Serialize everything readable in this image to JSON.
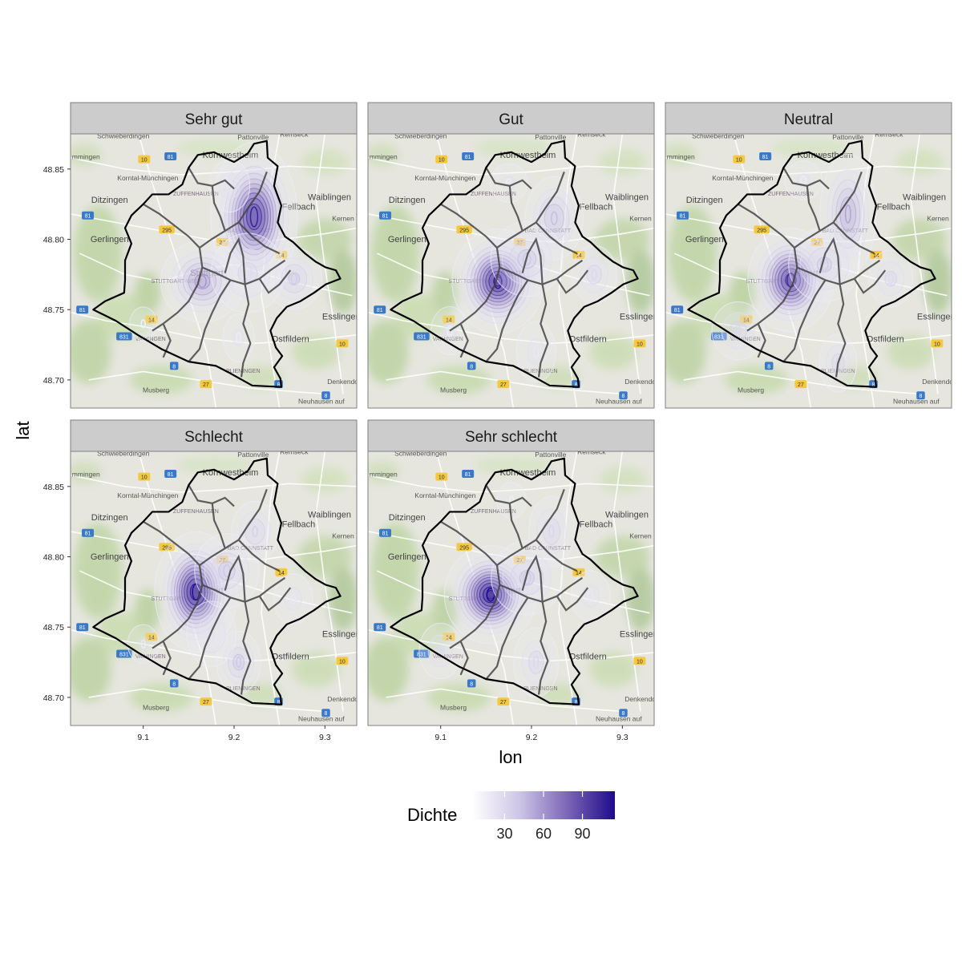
{
  "chart_data": {
    "type": "map-density-facets",
    "xlabel": "lon",
    "ylabel": "lat",
    "xlim": [
      9.02,
      9.335
    ],
    "ylim": [
      48.68,
      48.875
    ],
    "x_ticks": [
      {
        "value": 9.1,
        "label": "9.1"
      },
      {
        "value": 9.2,
        "label": "9.2"
      },
      {
        "value": 9.3,
        "label": "9.3"
      }
    ],
    "y_ticks": [
      {
        "value": 48.7,
        "label": "48.70"
      },
      {
        "value": 48.75,
        "label": "48.75"
      },
      {
        "value": 48.8,
        "label": "48.80"
      },
      {
        "value": 48.85,
        "label": "48.85"
      }
    ],
    "legend": {
      "title": "Dichte",
      "position": "bottom",
      "min": 5,
      "max": 115,
      "ticks": [
        {
          "value": 30,
          "label": "30"
        },
        {
          "value": 60,
          "label": "60"
        },
        {
          "value": 90,
          "label": "90"
        }
      ],
      "colors": [
        "#ffffff",
        "#bcb4dc",
        "#6a51a3",
        "#1e0a8c"
      ]
    },
    "map_labels": [
      {
        "text": "Schwieberdingen",
        "lon": 9.078,
        "lat": 48.872,
        "cls": "map-label"
      },
      {
        "text": "Pattonville",
        "lon": 9.221,
        "lat": 48.871,
        "cls": "map-label"
      },
      {
        "text": "Remseck",
        "lon": 9.266,
        "lat": 48.873,
        "cls": "map-label"
      },
      {
        "text": "mmingen",
        "lon": 9.037,
        "lat": 48.857,
        "cls": "map-label"
      },
      {
        "text": "Kornwestheim",
        "lon": 9.196,
        "lat": 48.858,
        "cls": "map-label-big"
      },
      {
        "text": "Korntal-Münchingen",
        "lon": 9.105,
        "lat": 48.842,
        "cls": "map-label"
      },
      {
        "text": "ZUFFENHAUSEN",
        "lon": 9.158,
        "lat": 48.831,
        "cls": "map-label-small"
      },
      {
        "text": "Ditzingen",
        "lon": 9.063,
        "lat": 48.826,
        "cls": "map-label-big"
      },
      {
        "text": "Waiblingen",
        "lon": 9.305,
        "lat": 48.828,
        "cls": "map-label-big"
      },
      {
        "text": "Fellbach",
        "lon": 9.271,
        "lat": 48.821,
        "cls": "map-label-big"
      },
      {
        "text": "Kernen",
        "lon": 9.32,
        "lat": 48.813,
        "cls": "map-label"
      },
      {
        "text": "BAD CANNSTATT",
        "lon": 9.218,
        "lat": 48.805,
        "cls": "map-label-small"
      },
      {
        "text": "Gerlingen",
        "lon": 9.063,
        "lat": 48.798,
        "cls": "map-label-big"
      },
      {
        "text": "Stuttgart",
        "lon": 9.17,
        "lat": 48.774,
        "cls": "map-label-big"
      },
      {
        "text": "STUTTGART-WEST",
        "lon": 9.137,
        "lat": 48.769,
        "cls": "map-label-small"
      },
      {
        "text": "Esslingen",
        "lon": 9.318,
        "lat": 48.743,
        "cls": "map-label-big"
      },
      {
        "text": "VAIHINGEN",
        "lon": 9.108,
        "lat": 48.728,
        "cls": "map-label-small"
      },
      {
        "text": "Ostfildern",
        "lon": 9.262,
        "lat": 48.727,
        "cls": "map-label-big"
      },
      {
        "text": "PLIENINGEN",
        "lon": 9.21,
        "lat": 48.705,
        "cls": "map-label-small"
      },
      {
        "text": "Musberg",
        "lon": 9.114,
        "lat": 48.691,
        "cls": "map-label"
      },
      {
        "text": "Denkendorf",
        "lon": 9.322,
        "lat": 48.697,
        "cls": "map-label"
      },
      {
        "text": "Neuhausen auf",
        "lon": 9.296,
        "lat": 48.683,
        "cls": "map-label"
      }
    ],
    "road_badges": [
      {
        "text": "10",
        "lon": 9.101,
        "lat": 48.857,
        "color": "#f5c842"
      },
      {
        "text": "81",
        "lon": 9.13,
        "lat": 48.859,
        "color": "#3a78c8"
      },
      {
        "text": "295",
        "lon": 9.126,
        "lat": 48.807,
        "color": "#f5c842"
      },
      {
        "text": "81",
        "lon": 9.039,
        "lat": 48.817,
        "color": "#3a78c8"
      },
      {
        "text": "14",
        "lon": 9.252,
        "lat": 48.789,
        "color": "#f5c842"
      },
      {
        "text": "27",
        "lon": 9.187,
        "lat": 48.798,
        "color": "#f5c842"
      },
      {
        "text": "81",
        "lon": 9.033,
        "lat": 48.75,
        "color": "#3a78c8"
      },
      {
        "text": "831",
        "lon": 9.079,
        "lat": 48.731,
        "color": "#3a78c8"
      },
      {
        "text": "14",
        "lon": 9.109,
        "lat": 48.743,
        "color": "#f5c842"
      },
      {
        "text": "10",
        "lon": 9.319,
        "lat": 48.726,
        "color": "#f5c842"
      },
      {
        "text": "27",
        "lon": 9.169,
        "lat": 48.697,
        "color": "#f5c842"
      },
      {
        "text": "8",
        "lon": 9.249,
        "lat": 48.697,
        "color": "#3a78c8"
      },
      {
        "text": "8",
        "lon": 9.301,
        "lat": 48.689,
        "color": "#3a78c8"
      },
      {
        "text": "8",
        "lon": 9.134,
        "lat": 48.71,
        "color": "#3a78c8"
      }
    ],
    "boundary": [
      [
        9.19,
        48.858
      ],
      [
        9.2,
        48.855
      ],
      [
        9.215,
        48.861
      ],
      [
        9.222,
        48.868
      ],
      [
        9.236,
        48.87
      ],
      [
        9.237,
        48.858
      ],
      [
        9.248,
        48.852
      ],
      [
        9.244,
        48.838
      ],
      [
        9.252,
        48.824
      ],
      [
        9.248,
        48.812
      ],
      [
        9.256,
        48.802
      ],
      [
        9.265,
        48.798
      ],
      [
        9.278,
        48.79
      ],
      [
        9.29,
        48.784
      ],
      [
        9.301,
        48.78
      ],
      [
        9.312,
        48.778
      ],
      [
        9.317,
        48.772
      ],
      [
        9.301,
        48.768
      ],
      [
        9.288,
        48.762
      ],
      [
        9.273,
        48.756
      ],
      [
        9.258,
        48.752
      ],
      [
        9.247,
        48.744
      ],
      [
        9.24,
        48.735
      ],
      [
        9.246,
        48.723
      ],
      [
        9.253,
        48.717
      ],
      [
        9.244,
        48.709
      ],
      [
        9.251,
        48.701
      ],
      [
        9.252,
        48.695
      ],
      [
        9.22,
        48.696
      ],
      [
        9.195,
        48.705
      ],
      [
        9.18,
        48.71
      ],
      [
        9.15,
        48.713
      ],
      [
        9.12,
        48.722
      ],
      [
        9.094,
        48.732
      ],
      [
        9.07,
        48.742
      ],
      [
        9.045,
        48.75
      ],
      [
        9.058,
        48.756
      ],
      [
        9.079,
        48.762
      ],
      [
        9.08,
        48.771
      ],
      [
        9.08,
        48.785
      ],
      [
        9.087,
        48.797
      ],
      [
        9.08,
        48.808
      ],
      [
        9.087,
        48.817
      ],
      [
        9.1,
        48.825
      ],
      [
        9.11,
        48.832
      ],
      [
        9.128,
        48.832
      ],
      [
        9.143,
        48.839
      ],
      [
        9.15,
        48.851
      ],
      [
        9.16,
        48.86
      ],
      [
        9.178,
        48.862
      ],
      [
        9.19,
        48.858
      ]
    ],
    "district_lines": [
      [
        [
          9.15,
          48.851
        ],
        [
          9.16,
          48.84
        ],
        [
          9.176,
          48.838
        ],
        [
          9.19,
          48.842
        ],
        [
          9.2,
          48.836
        ]
      ],
      [
        [
          9.1,
          48.825
        ],
        [
          9.118,
          48.818
        ],
        [
          9.134,
          48.81
        ],
        [
          9.15,
          48.802
        ],
        [
          9.162,
          48.794
        ]
      ],
      [
        [
          9.162,
          48.794
        ],
        [
          9.175,
          48.8
        ],
        [
          9.19,
          48.806
        ],
        [
          9.205,
          48.812
        ],
        [
          9.215,
          48.822
        ],
        [
          9.228,
          48.834
        ],
        [
          9.236,
          48.848
        ]
      ],
      [
        [
          9.162,
          48.794
        ],
        [
          9.165,
          48.78
        ],
        [
          9.16,
          48.768
        ],
        [
          9.15,
          48.756
        ],
        [
          9.138,
          48.748
        ],
        [
          9.122,
          48.74
        ],
        [
          9.11,
          48.735
        ]
      ],
      [
        [
          9.165,
          48.78
        ],
        [
          9.18,
          48.776
        ],
        [
          9.196,
          48.771
        ],
        [
          9.212,
          48.768
        ],
        [
          9.228,
          48.772
        ],
        [
          9.24,
          48.778
        ],
        [
          9.256,
          48.785
        ]
      ],
      [
        [
          9.212,
          48.768
        ],
        [
          9.216,
          48.754
        ],
        [
          9.21,
          48.74
        ],
        [
          9.218,
          48.726
        ],
        [
          9.21,
          48.712
        ],
        [
          9.208,
          48.702
        ]
      ],
      [
        [
          9.196,
          48.771
        ],
        [
          9.185,
          48.76
        ],
        [
          9.176,
          48.748
        ],
        [
          9.168,
          48.736
        ],
        [
          9.162,
          48.722
        ],
        [
          9.15,
          48.713
        ]
      ],
      [
        [
          9.228,
          48.772
        ],
        [
          9.238,
          48.762
        ],
        [
          9.25,
          48.768
        ],
        [
          9.262,
          48.778
        ]
      ],
      [
        [
          9.205,
          48.812
        ],
        [
          9.22,
          48.802
        ],
        [
          9.234,
          48.795
        ],
        [
          9.25,
          48.79
        ]
      ],
      [
        [
          9.176,
          48.838
        ],
        [
          9.178,
          48.826
        ],
        [
          9.185,
          48.816
        ],
        [
          9.19,
          48.806
        ]
      ],
      [
        [
          9.122,
          48.74
        ],
        [
          9.13,
          48.728
        ],
        [
          9.122,
          48.716
        ]
      ],
      [
        [
          9.19,
          48.776
        ],
        [
          9.196,
          48.79
        ],
        [
          9.205,
          48.8
        ],
        [
          9.21,
          48.788
        ],
        [
          9.212,
          48.768
        ]
      ]
    ],
    "facets": [
      {
        "name": "Sehr gut",
        "hotspots": [
          {
            "lon": 9.222,
            "lat": 48.816,
            "sx": 0.018,
            "sy": 0.02,
            "peak": 105
          },
          {
            "lon": 9.165,
            "lat": 48.77,
            "sx": 0.019,
            "sy": 0.012,
            "peak": 60
          },
          {
            "lon": 9.266,
            "lat": 48.772,
            "sx": 0.014,
            "sy": 0.01,
            "peak": 38
          },
          {
            "lon": 9.215,
            "lat": 48.776,
            "sx": 0.02,
            "sy": 0.014,
            "peak": 28
          },
          {
            "lon": 9.195,
            "lat": 48.838,
            "sx": 0.012,
            "sy": 0.01,
            "peak": 22
          },
          {
            "lon": 9.205,
            "lat": 48.73,
            "sx": 0.01,
            "sy": 0.01,
            "peak": 18
          },
          {
            "lon": 9.1,
            "lat": 48.74,
            "sx": 0.01,
            "sy": 0.008,
            "peak": 14
          }
        ]
      },
      {
        "name": "Gut",
        "hotspots": [
          {
            "lon": 9.163,
            "lat": 48.77,
            "sx": 0.019,
            "sy": 0.014,
            "peak": 108
          },
          {
            "lon": 9.225,
            "lat": 48.815,
            "sx": 0.014,
            "sy": 0.013,
            "peak": 45
          },
          {
            "lon": 9.195,
            "lat": 48.786,
            "sx": 0.018,
            "sy": 0.012,
            "peak": 40
          },
          {
            "lon": 9.269,
            "lat": 48.775,
            "sx": 0.012,
            "sy": 0.01,
            "peak": 30
          },
          {
            "lon": 9.175,
            "lat": 48.84,
            "sx": 0.012,
            "sy": 0.008,
            "peak": 18
          },
          {
            "lon": 9.11,
            "lat": 48.735,
            "sx": 0.012,
            "sy": 0.01,
            "peak": 18
          },
          {
            "lon": 9.205,
            "lat": 48.72,
            "sx": 0.012,
            "sy": 0.012,
            "peak": 20
          }
        ]
      },
      {
        "name": "Neutral",
        "hotspots": [
          {
            "lon": 9.158,
            "lat": 48.771,
            "sx": 0.018,
            "sy": 0.014,
            "peak": 100
          },
          {
            "lon": 9.221,
            "lat": 48.818,
            "sx": 0.013,
            "sy": 0.018,
            "peak": 55
          },
          {
            "lon": 9.195,
            "lat": 48.782,
            "sx": 0.018,
            "sy": 0.012,
            "peak": 38
          },
          {
            "lon": 9.268,
            "lat": 48.772,
            "sx": 0.012,
            "sy": 0.01,
            "peak": 28
          },
          {
            "lon": 9.1,
            "lat": 48.735,
            "sx": 0.014,
            "sy": 0.01,
            "peak": 30
          },
          {
            "lon": 9.21,
            "lat": 48.712,
            "sx": 0.01,
            "sy": 0.01,
            "peak": 30
          },
          {
            "lon": 9.172,
            "lat": 48.842,
            "sx": 0.012,
            "sy": 0.008,
            "peak": 18
          }
        ]
      },
      {
        "name": "Schlecht",
        "hotspots": [
          {
            "lon": 9.158,
            "lat": 48.775,
            "sx": 0.017,
            "sy": 0.016,
            "peak": 112
          },
          {
            "lon": 9.223,
            "lat": 48.818,
            "sx": 0.012,
            "sy": 0.01,
            "peak": 35
          },
          {
            "lon": 9.192,
            "lat": 48.79,
            "sx": 0.016,
            "sy": 0.012,
            "peak": 40
          },
          {
            "lon": 9.205,
            "lat": 48.725,
            "sx": 0.011,
            "sy": 0.01,
            "peak": 40
          },
          {
            "lon": 9.265,
            "lat": 48.77,
            "sx": 0.012,
            "sy": 0.01,
            "peak": 20
          },
          {
            "lon": 9.1,
            "lat": 48.738,
            "sx": 0.01,
            "sy": 0.008,
            "peak": 18
          },
          {
            "lon": 9.175,
            "lat": 48.745,
            "sx": 0.014,
            "sy": 0.012,
            "peak": 25
          }
        ]
      },
      {
        "name": "Sehr schlecht",
        "hotspots": [
          {
            "lon": 9.155,
            "lat": 48.773,
            "sx": 0.019,
            "sy": 0.013,
            "peak": 115
          },
          {
            "lon": 9.222,
            "lat": 48.818,
            "sx": 0.012,
            "sy": 0.012,
            "peak": 32
          },
          {
            "lon": 9.195,
            "lat": 48.785,
            "sx": 0.018,
            "sy": 0.012,
            "peak": 38
          },
          {
            "lon": 9.205,
            "lat": 48.725,
            "sx": 0.012,
            "sy": 0.012,
            "peak": 30
          },
          {
            "lon": 9.1,
            "lat": 48.733,
            "sx": 0.012,
            "sy": 0.01,
            "peak": 26
          },
          {
            "lon": 9.265,
            "lat": 48.772,
            "sx": 0.012,
            "sy": 0.01,
            "peak": 20
          },
          {
            "lon": 9.178,
            "lat": 48.84,
            "sx": 0.01,
            "sy": 0.008,
            "peak": 16
          }
        ]
      }
    ]
  }
}
